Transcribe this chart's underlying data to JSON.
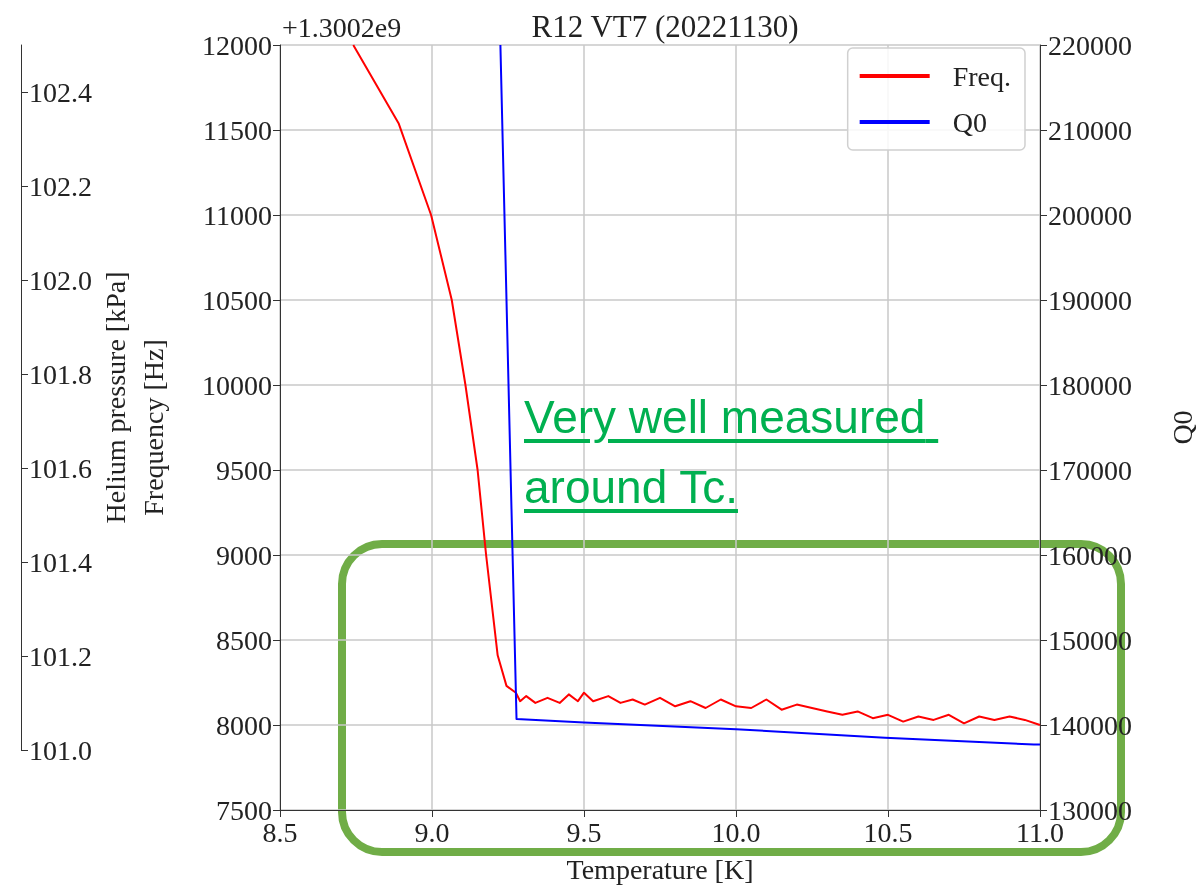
{
  "chart_data": {
    "type": "line",
    "title": "R12 VT7 (20221130)",
    "xlabel": "Temperature [K]",
    "ylabel": "Frequency [Hz]",
    "y2label": "Q0",
    "y3label": "Helium pressure [kPa]",
    "annotations": [
      "+1.3002e9",
      "Very well measured around Tc."
    ],
    "xlim": [
      8.5,
      11.0
    ],
    "xticks": [
      8.5,
      {
        "value": 9,
        "label": "9.0"
      },
      9.5,
      {
        "value": 10,
        "label": "10.0"
      },
      10.5,
      {
        "value": 11,
        "label": "11.0"
      }
    ],
    "ylim": [
      7500,
      12000
    ],
    "yticks": [
      7500,
      8000,
      8500,
      9000,
      9500,
      10000,
      10500,
      11000,
      11500,
      12000
    ],
    "y2lim": [
      130000,
      220000
    ],
    "y2ticks": [
      130000,
      140000,
      150000,
      160000,
      170000,
      180000,
      190000,
      200000,
      210000,
      220000
    ],
    "y3lim": [
      101.0,
      102.5
    ],
    "y3ticks": [
      {
        "value": 101,
        "label": "101.0"
      },
      101.2,
      101.4,
      101.6,
      101.8,
      {
        "value": 102,
        "label": "102.0"
      },
      102.2,
      102.4
    ],
    "grid": true,
    "legend": "top right",
    "line_style": "solid",
    "series": [
      {
        "name": "Freq.",
        "color": "#ff0000",
        "x": [
          8.741,
          8.89,
          8.997,
          9.065,
          9.11,
          9.15,
          9.178,
          9.216,
          9.245,
          9.276,
          9.29,
          9.31,
          9.34,
          9.38,
          9.42,
          9.45,
          9.48,
          9.5,
          9.53,
          9.58,
          9.62,
          9.66,
          9.7,
          9.75,
          9.8,
          9.85,
          9.9,
          9.95,
          10.0,
          10.05,
          10.1,
          10.15,
          10.2,
          10.3,
          10.35,
          10.4,
          10.45,
          10.5,
          10.55,
          10.6,
          10.65,
          10.7,
          10.75,
          10.8,
          10.85,
          10.9,
          10.95,
          11.0
        ],
        "values": [
          12000,
          11540,
          11000,
          10500,
          10000,
          9500,
          9000,
          8410,
          8230,
          8190,
          8140,
          8170,
          8130,
          8160,
          8130,
          8180,
          8140,
          8190,
          8140,
          8170,
          8130,
          8150,
          8120,
          8160,
          8110,
          8140,
          8100,
          8150,
          8110,
          8100,
          8150,
          8090,
          8120,
          8080,
          8060,
          8080,
          8040,
          8060,
          8020,
          8050,
          8030,
          8060,
          8010,
          8050,
          8030,
          8050,
          8030,
          8000
        ]
      },
      {
        "name": "Q0",
        "color": "#0000ff",
        "axis": "y2",
        "x": [
          9.225,
          9.278,
          9.5,
          10.0,
          10.49,
          10.98,
          11.0
        ],
        "values": [
          220000,
          140700,
          140300,
          139500,
          138500,
          137700,
          137700
        ]
      }
    ]
  }
}
